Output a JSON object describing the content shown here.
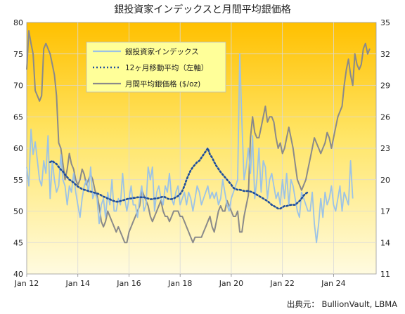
{
  "chart_data": {
    "type": "line",
    "title": "銀投資家インデックスと月間平均銀価格",
    "source": "出典元： BullionVault, LBMA",
    "x_ticks": [
      "Jan 12",
      "Jan 14",
      "Jan 16",
      "Jan 18",
      "Jan 20",
      "Jan 22",
      "Jan 24"
    ],
    "y_left_ticks": [
      "40",
      "45",
      "50",
      "55",
      "60",
      "65",
      "70",
      "75",
      "80"
    ],
    "y_right_ticks": [
      "11",
      "14",
      "17",
      "20",
      "23",
      "26",
      "29",
      "32",
      "35"
    ],
    "y_left_range": [
      40,
      80
    ],
    "y_right_range": [
      11,
      35
    ],
    "x_range": [
      "2012-01",
      "2025-09"
    ],
    "legend_position": "top-left",
    "grid": true,
    "series": [
      {
        "name": "銀投資家インデックス",
        "axis": "left",
        "color": "#9cc3e6",
        "start": "2012-01",
        "values": [
          57,
          54,
          63,
          59,
          61,
          58,
          55,
          54,
          58,
          56,
          62,
          52,
          58,
          55,
          53,
          54,
          59,
          55,
          54,
          51,
          54,
          53,
          56,
          53,
          51,
          49,
          52,
          54,
          55,
          53,
          57,
          52,
          53,
          52,
          48,
          51,
          52,
          49,
          53,
          51,
          55,
          50,
          50,
          52,
          51,
          56,
          52,
          50,
          52,
          54,
          51,
          51,
          49,
          52,
          54,
          50,
          51,
          57,
          55,
          57,
          50,
          53,
          54,
          52,
          51,
          54,
          53,
          56,
          52,
          51,
          53,
          54,
          51,
          52,
          53,
          51,
          53,
          52,
          50,
          52,
          54,
          53,
          51,
          52,
          53,
          54,
          52,
          53,
          52,
          53,
          51,
          52,
          55,
          53,
          51,
          50,
          52,
          53,
          54,
          55,
          75,
          64,
          55,
          57,
          60,
          56,
          62,
          52,
          55,
          60,
          53,
          58,
          57,
          52,
          55,
          56,
          54,
          52,
          53,
          51,
          55,
          52,
          56,
          51,
          55,
          54,
          52,
          50,
          49,
          53,
          52,
          51,
          50,
          50,
          53,
          48,
          45,
          48,
          52,
          49,
          53,
          51,
          52,
          54,
          51,
          50,
          52,
          54,
          50,
          53,
          52,
          51,
          58,
          52
        ]
      },
      {
        "name": "12ヶ月移動平均（左軸）",
        "axis": "left",
        "color": "#1f4e9c",
        "start": "2012-12",
        "values": [
          57.8,
          58.0,
          57.7,
          57.5,
          57.0,
          56.6,
          56.3,
          55.8,
          55.4,
          55.0,
          54.8,
          54.5,
          54.2,
          53.9,
          53.7,
          53.5,
          53.4,
          53.3,
          53.2,
          53.1,
          53.0,
          52.9,
          52.8,
          52.7,
          52.5,
          52.3,
          52.2,
          52.0,
          51.9,
          51.7,
          51.6,
          51.5,
          51.5,
          51.6,
          51.7,
          51.8,
          51.9,
          52.0,
          52.0,
          52.1,
          52.1,
          52.2,
          52.2,
          52.2,
          52.2,
          52.1,
          52.0,
          51.9,
          51.9,
          52.0,
          52.0,
          52.1,
          52.2,
          52.3,
          52.2,
          52.0,
          51.9,
          51.9,
          52.0,
          52.2,
          52.4,
          52.7,
          53.2,
          54.0,
          55.0,
          55.8,
          56.5,
          57.0,
          57.4,
          57.8,
          58.0,
          58.5,
          59.0,
          59.5,
          60.0,
          59.0,
          58.5,
          57.8,
          57.2,
          56.7,
          56.2,
          55.8,
          55.4,
          55.0,
          54.6,
          54.2,
          53.7,
          53.5,
          53.4,
          53.4,
          53.3,
          53.2,
          53.2,
          53.2,
          53.1,
          53.0,
          52.8,
          52.6,
          52.4,
          52.2,
          52.0,
          51.8,
          51.6,
          51.3,
          51.0,
          50.8,
          50.6,
          50.4,
          50.4,
          50.6,
          50.8,
          50.8,
          50.9,
          51.0,
          51.0,
          51.0,
          51.3,
          51.6,
          52.0,
          52.5,
          52.8,
          53.0
        ]
      },
      {
        "name": "月間平均銀価格 ($/oz)",
        "axis": "right",
        "color": "#8a8a8a",
        "start": "2012-01",
        "values": [
          30.5,
          34.2,
          33.0,
          32.0,
          28.5,
          28.0,
          27.5,
          28.0,
          32.5,
          33.0,
          32.5,
          32.0,
          31.0,
          30.0,
          28.0,
          23.5,
          23.0,
          21.5,
          20.0,
          21.0,
          22.5,
          21.5,
          21.0,
          20.0,
          19.5,
          20.0,
          21.0,
          20.5,
          19.5,
          20.0,
          20.5,
          20.0,
          19.0,
          18.5,
          17.5,
          16.0,
          15.5,
          16.0,
          17.0,
          16.5,
          16.0,
          15.5,
          15.0,
          15.5,
          15.0,
          14.5,
          14.0,
          14.0,
          15.0,
          15.5,
          16.0,
          16.5,
          17.0,
          17.5,
          19.0,
          18.5,
          18.0,
          17.5,
          16.5,
          16.0,
          16.5,
          17.0,
          17.5,
          18.0,
          17.0,
          16.5,
          16.5,
          16.0,
          16.5,
          17.0,
          17.0,
          17.0,
          16.5,
          16.5,
          16.0,
          15.5,
          15.0,
          14.5,
          14.0,
          14.5,
          14.5,
          14.5,
          14.5,
          15.0,
          15.5,
          16.0,
          16.5,
          15.5,
          15.0,
          16.0,
          17.0,
          17.5,
          17.0,
          17.0,
          18.0,
          17.5,
          17.0,
          16.5,
          16.5,
          17.0,
          15.0,
          15.0,
          16.5,
          17.5,
          18.5,
          24.0,
          26.0,
          24.5,
          24.0,
          24.0,
          25.0,
          26.0,
          27.0,
          25.5,
          26.0,
          26.0,
          25.5,
          24.0,
          23.0,
          23.5,
          22.5,
          23.0,
          24.0,
          25.0,
          24.0,
          23.0,
          21.5,
          20.0,
          19.5,
          19.0,
          19.5,
          20.0,
          21.0,
          22.0,
          23.0,
          24.0,
          23.5,
          23.0,
          22.5,
          23.0,
          23.5,
          24.5,
          24.0,
          23.0,
          24.0,
          25.0,
          26.0,
          26.5,
          27.0,
          29.0,
          30.5,
          31.5,
          30.0,
          29.0,
          32.0,
          31.0,
          30.5,
          31.0,
          32.5,
          33.0,
          32.0,
          32.5
        ]
      }
    ]
  }
}
